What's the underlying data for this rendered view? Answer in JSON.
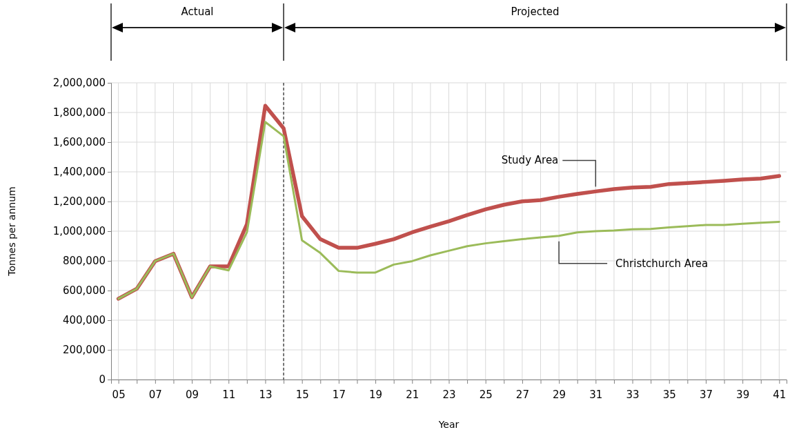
{
  "chart_data": {
    "type": "line",
    "xlabel": "Year",
    "ylabel": "Tonnes per annum",
    "x": [
      5,
      6,
      7,
      8,
      9,
      10,
      11,
      12,
      13,
      14,
      15,
      16,
      17,
      18,
      19,
      20,
      21,
      22,
      23,
      24,
      25,
      26,
      27,
      28,
      29,
      30,
      31,
      32,
      33,
      34,
      35,
      36,
      37,
      38,
      39,
      40,
      41
    ],
    "series": [
      {
        "name": "Study Area",
        "color": "#c0504d",
        "values": [
          545000,
          612000,
          798000,
          848000,
          555000,
          763000,
          763000,
          1047000,
          1845000,
          1693000,
          1101000,
          946000,
          888000,
          888000,
          915000,
          946000,
          992000,
          1031000,
          1067000,
          1109000,
          1147000,
          1178000,
          1201000,
          1209000,
          1232000,
          1251000,
          1268000,
          1284000,
          1294000,
          1299000,
          1318000,
          1324000,
          1332000,
          1340000,
          1349000,
          1355000,
          1372000
        ]
      },
      {
        "name": "Christchurch Area",
        "color": "#9bbb59",
        "values": [
          545000,
          612000,
          798000,
          848000,
          555000,
          763000,
          736000,
          992000,
          1736000,
          1640000,
          938000,
          853000,
          732000,
          721000,
          721000,
          775000,
          798000,
          837000,
          868000,
          899000,
          918000,
          933000,
          946000,
          958000,
          969000,
          992000,
          1000000,
          1005000,
          1013000,
          1015000,
          1026000,
          1034000,
          1042000,
          1042000,
          1050000,
          1057000,
          1063000
        ]
      }
    ],
    "xlim": [
      4.6,
      41.4
    ],
    "xticks": [
      {
        "value": 5,
        "label": "05"
      },
      {
        "value": 6,
        "label": null
      },
      {
        "value": 7,
        "label": "07"
      },
      {
        "value": 8,
        "label": null
      },
      {
        "value": 9,
        "label": "09"
      },
      {
        "value": 10,
        "label": null
      },
      11,
      {
        "value": 12,
        "label": null
      },
      13,
      {
        "value": 14,
        "label": null
      },
      15,
      {
        "value": 16,
        "label": null
      },
      17,
      {
        "value": 18,
        "label": null
      },
      19,
      {
        "value": 20,
        "label": null
      },
      21,
      {
        "value": 22,
        "label": null
      },
      23,
      {
        "value": 24,
        "label": null
      },
      25,
      {
        "value": 26,
        "label": null
      },
      27,
      {
        "value": 28,
        "label": null
      },
      29,
      {
        "value": 30,
        "label": null
      },
      31,
      {
        "value": 32,
        "label": null
      },
      33,
      {
        "value": 34,
        "label": null
      },
      35,
      {
        "value": 36,
        "label": null
      },
      37,
      {
        "value": 38,
        "label": null
      },
      39,
      {
        "value": 40,
        "label": null
      },
      41
    ],
    "ylim": [
      0,
      2000000
    ],
    "yticks": [
      0,
      {
        "value": 200000,
        "label": "200,000"
      },
      {
        "value": 400000,
        "label": "400,000"
      },
      {
        "value": 600000,
        "label": "600,000"
      },
      {
        "value": 800000,
        "label": "800,000"
      },
      {
        "value": 1000000,
        "label": "1,000,000"
      },
      {
        "value": 1200000,
        "label": "1,200,000"
      },
      {
        "value": 1400000,
        "label": "1,400,000"
      },
      {
        "value": 1600000,
        "label": "1,600,000"
      },
      {
        "value": 1800000,
        "label": "1,800,000"
      },
      {
        "value": 2000000,
        "label": "2,000,000"
      }
    ],
    "grid": true,
    "legend": false,
    "marker": "none",
    "line_style": "solid",
    "ref_lines": [
      {
        "axis": "x",
        "value": 14,
        "color": "#000000",
        "line_style": "dashed"
      }
    ],
    "annotations": [
      "Actual",
      "Projected"
    ]
  }
}
